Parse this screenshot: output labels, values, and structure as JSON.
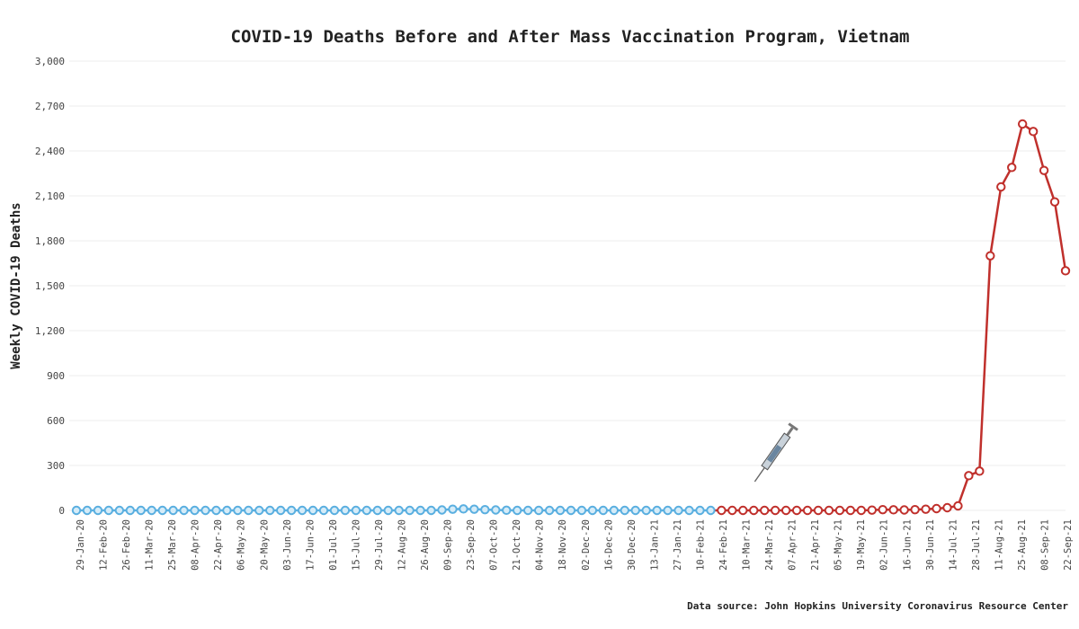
{
  "chart_data": {
    "type": "line",
    "title": "COVID-19 Deaths Before and After Mass Vaccination Program, Vietnam",
    "ylabel": "Weekly COVID-19 Deaths",
    "xlabel": "",
    "ylim": [
      0,
      3000
    ],
    "yticks": [
      0,
      300,
      600,
      900,
      1200,
      1500,
      1800,
      2100,
      2400,
      2700,
      3000
    ],
    "ytick_labels": [
      "0",
      "300",
      "600",
      "900",
      "1,200",
      "1,500",
      "1,800",
      "2,100",
      "2,400",
      "2,700",
      "3,000"
    ],
    "grid": true,
    "x_tick_labels": [
      "29-Jan-20",
      "12-Feb-20",
      "26-Feb-20",
      "11-Mar-20",
      "25-Mar-20",
      "08-Apr-20",
      "22-Apr-20",
      "06-May-20",
      "20-May-20",
      "03-Jun-20",
      "17-Jun-20",
      "01-Jul-20",
      "15-Jul-20",
      "29-Jul-20",
      "12-Aug-20",
      "26-Aug-20",
      "09-Sep-20",
      "23-Sep-20",
      "07-Oct-20",
      "21-Oct-20",
      "04-Nov-20",
      "18-Nov-20",
      "02-Dec-20",
      "16-Dec-20",
      "30-Dec-20",
      "13-Jan-21",
      "27-Jan-21",
      "10-Feb-21",
      "24-Feb-21",
      "10-Mar-21",
      "24-Mar-21",
      "07-Apr-21",
      "21-Apr-21",
      "05-May-21",
      "19-May-21",
      "02-Jun-21",
      "16-Jun-21",
      "30-Jun-21",
      "14-Jul-21",
      "28-Jul-21",
      "11-Aug-21",
      "25-Aug-21",
      "08-Sep-21",
      "22-Sep-21"
    ],
    "series": [
      {
        "segment": "before",
        "color": "#5aafe0",
        "values": [
          0,
          0,
          0,
          0,
          0,
          0,
          0,
          0,
          0,
          0,
          0,
          0,
          0,
          0,
          0,
          0,
          0,
          0,
          0,
          0,
          0,
          0,
          0,
          0,
          0,
          0,
          0,
          0,
          0,
          0,
          0,
          0,
          0,
          0,
          3,
          8,
          10,
          8,
          5,
          3,
          1,
          0,
          0,
          0,
          0,
          0,
          0,
          0,
          0,
          0,
          0,
          0,
          0,
          0,
          0,
          0,
          0,
          0,
          0,
          0
        ]
      },
      {
        "segment": "after",
        "color": "#c0302c",
        "values": [
          0,
          0,
          0,
          0,
          0,
          0,
          0,
          0,
          0,
          0,
          0,
          0,
          0,
          0,
          2,
          5,
          4,
          3,
          5,
          8,
          12,
          18,
          30,
          232,
          262,
          1700,
          2160,
          2290,
          2580,
          2530,
          2270,
          2060,
          1600
        ]
      }
    ],
    "annotations": [
      {
        "type": "syringe-icon",
        "at": "10-Mar-21"
      }
    ],
    "source": "Data source: John Hopkins University Coronavirus Resource Center"
  }
}
